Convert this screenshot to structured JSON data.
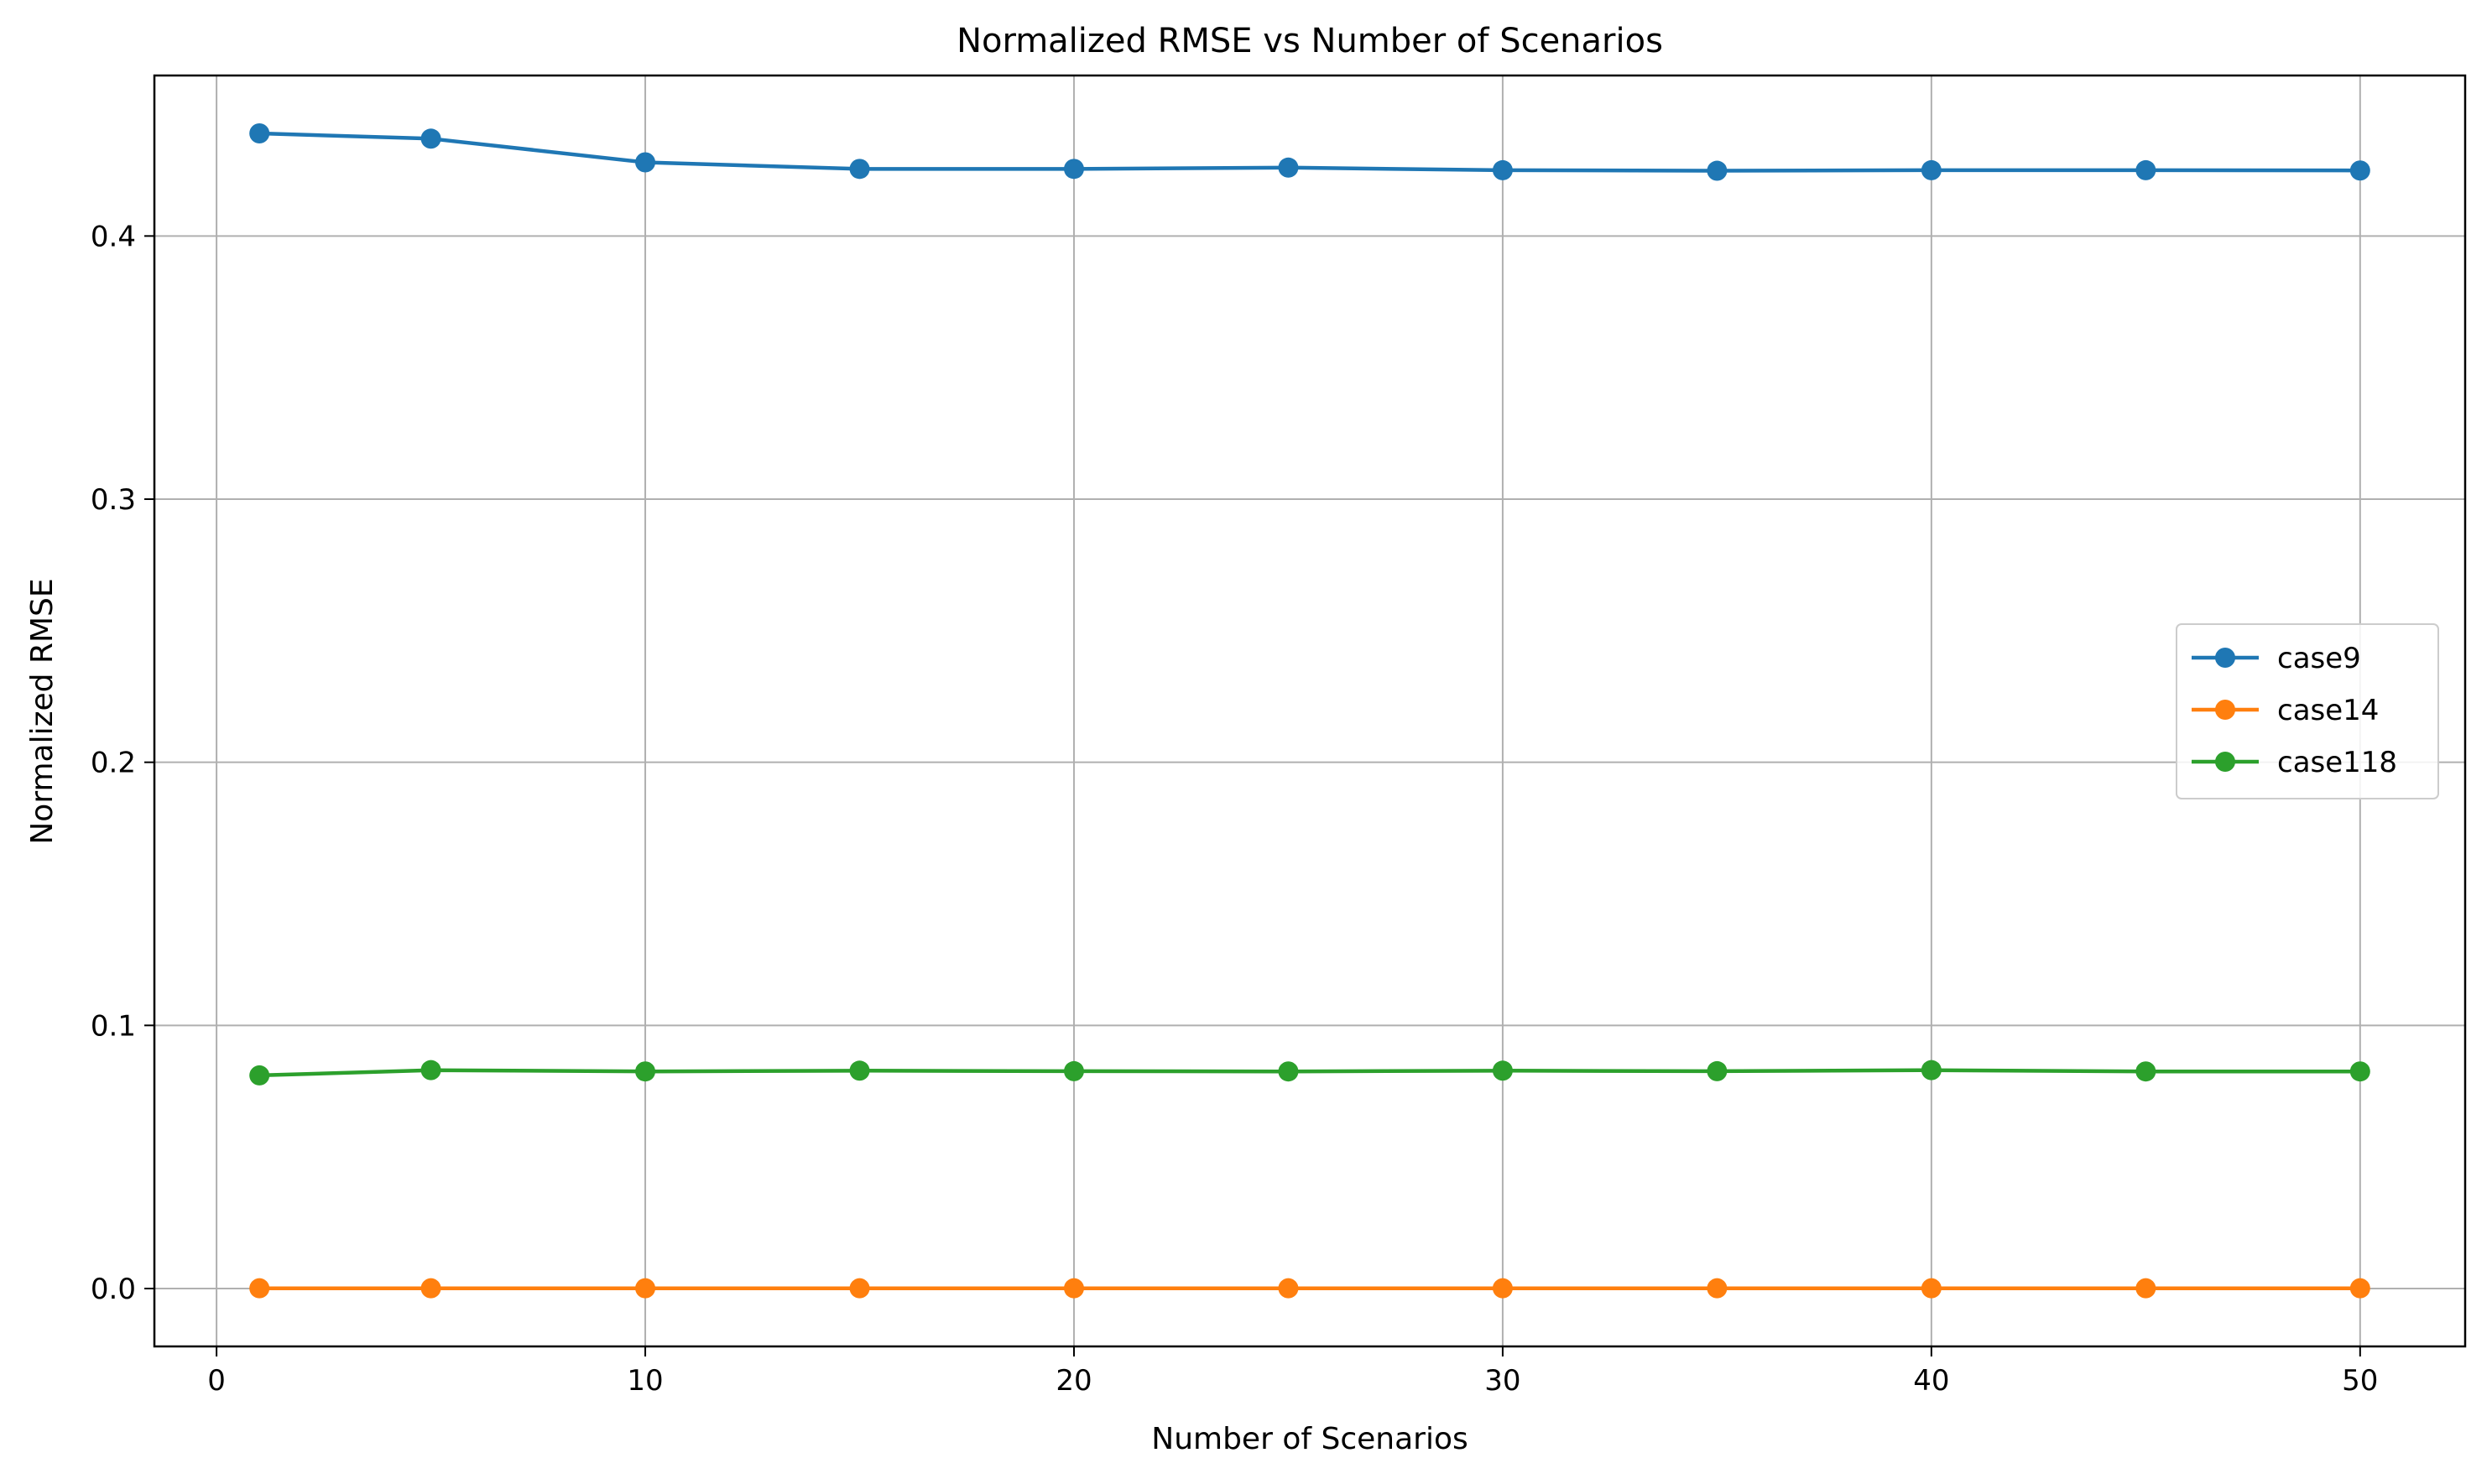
{
  "chart_data": {
    "type": "line",
    "title": "Normalized RMSE vs Number of Scenarios",
    "xlabel": "Number of Scenarios",
    "ylabel": "Normalized RMSE",
    "x": [
      1,
      5,
      10,
      15,
      20,
      25,
      30,
      35,
      40,
      45,
      50
    ],
    "xlim": [
      -1.45,
      52.45
    ],
    "ylim": [
      -0.022,
      0.461
    ],
    "xticks": [
      0,
      10,
      20,
      30,
      40,
      50
    ],
    "yticks": [
      0.0,
      0.1,
      0.2,
      0.3,
      0.4
    ],
    "xtick_labels": [
      "0",
      "10",
      "20",
      "30",
      "40",
      "50"
    ],
    "ytick_labels": [
      "0.0",
      "0.1",
      "0.2",
      "0.3",
      "0.4"
    ],
    "grid": true,
    "legend_position": "center-right",
    "series": [
      {
        "name": "case9",
        "color": "#1f77b4",
        "marker": "circle",
        "values": [
          0.439,
          0.437,
          0.428,
          0.4255,
          0.4255,
          0.426,
          0.425,
          0.4248,
          0.425,
          0.425,
          0.4249
        ]
      },
      {
        "name": "case14",
        "color": "#ff7f0e",
        "marker": "circle",
        "values": [
          0.0001,
          0.0001,
          0.0001,
          0.0001,
          0.0001,
          0.0001,
          0.0001,
          0.0001,
          0.0001,
          0.0001,
          0.0001
        ]
      },
      {
        "name": "case118",
        "color": "#2ca02c",
        "marker": "circle",
        "values": [
          0.081,
          0.083,
          0.0825,
          0.0828,
          0.0826,
          0.0825,
          0.0828,
          0.0826,
          0.083,
          0.0825,
          0.0825
        ]
      }
    ]
  }
}
